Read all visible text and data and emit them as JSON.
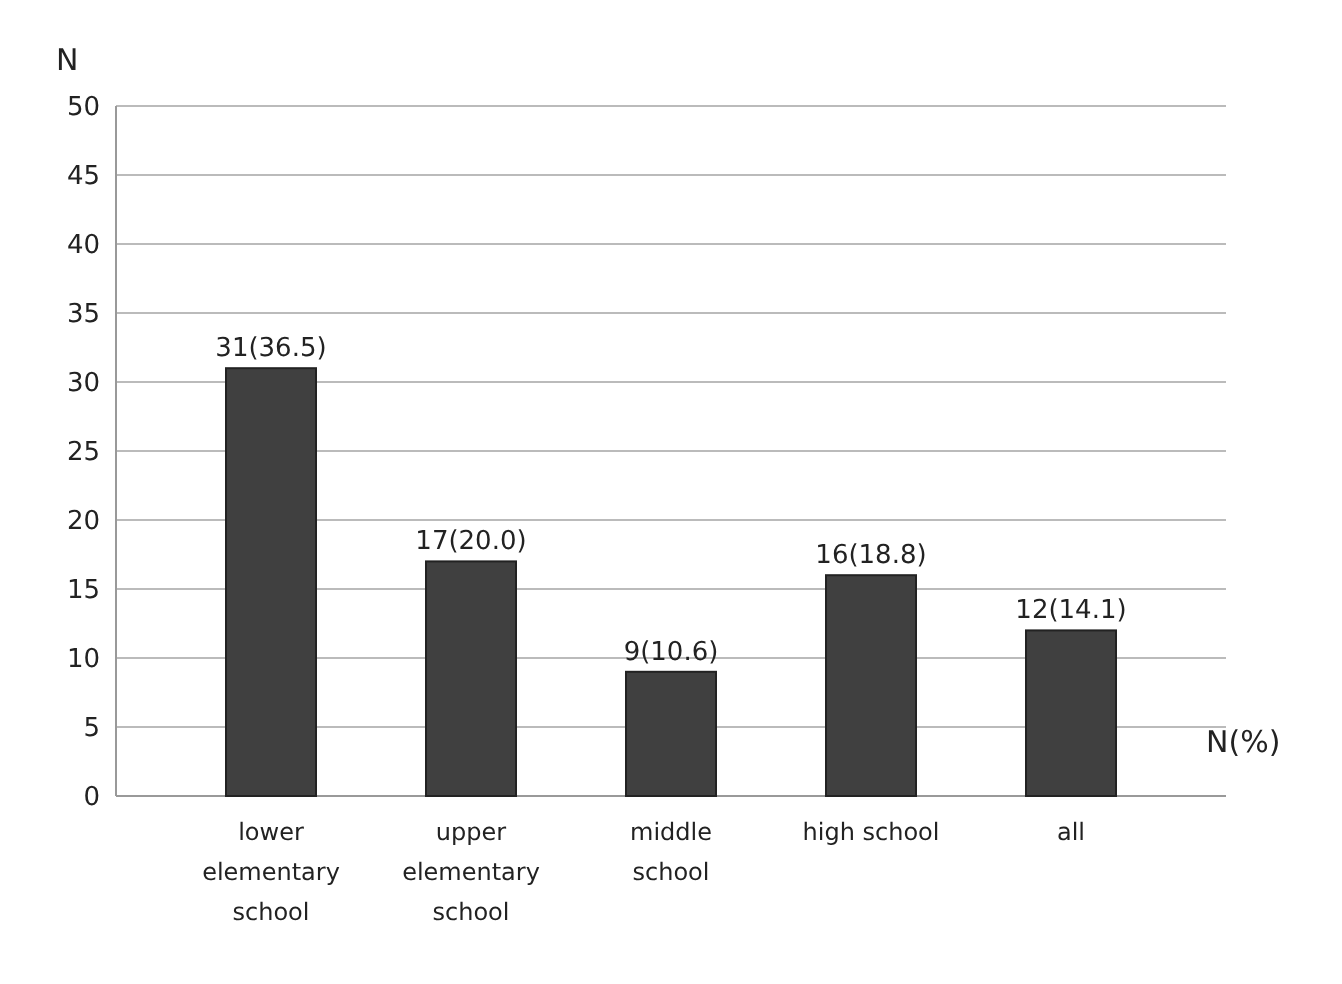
{
  "chart_data": {
    "type": "bar",
    "ylabel": "N",
    "xlabel": "N(%)",
    "categories": [
      "lower elementary school",
      "upper elementary school",
      "middle school",
      "high school",
      "all"
    ],
    "values": [
      31,
      17,
      9,
      16,
      12
    ],
    "value_labels": [
      "31(36.5)",
      "17(20.0)",
      "9(10.6)",
      "16(18.8)",
      "12(14.1)"
    ],
    "color": "#404040",
    "ylim": [
      0,
      50
    ],
    "yticks": [
      0,
      5,
      10,
      15,
      20,
      25,
      30,
      35,
      40,
      45,
      50
    ],
    "grid": "y"
  }
}
